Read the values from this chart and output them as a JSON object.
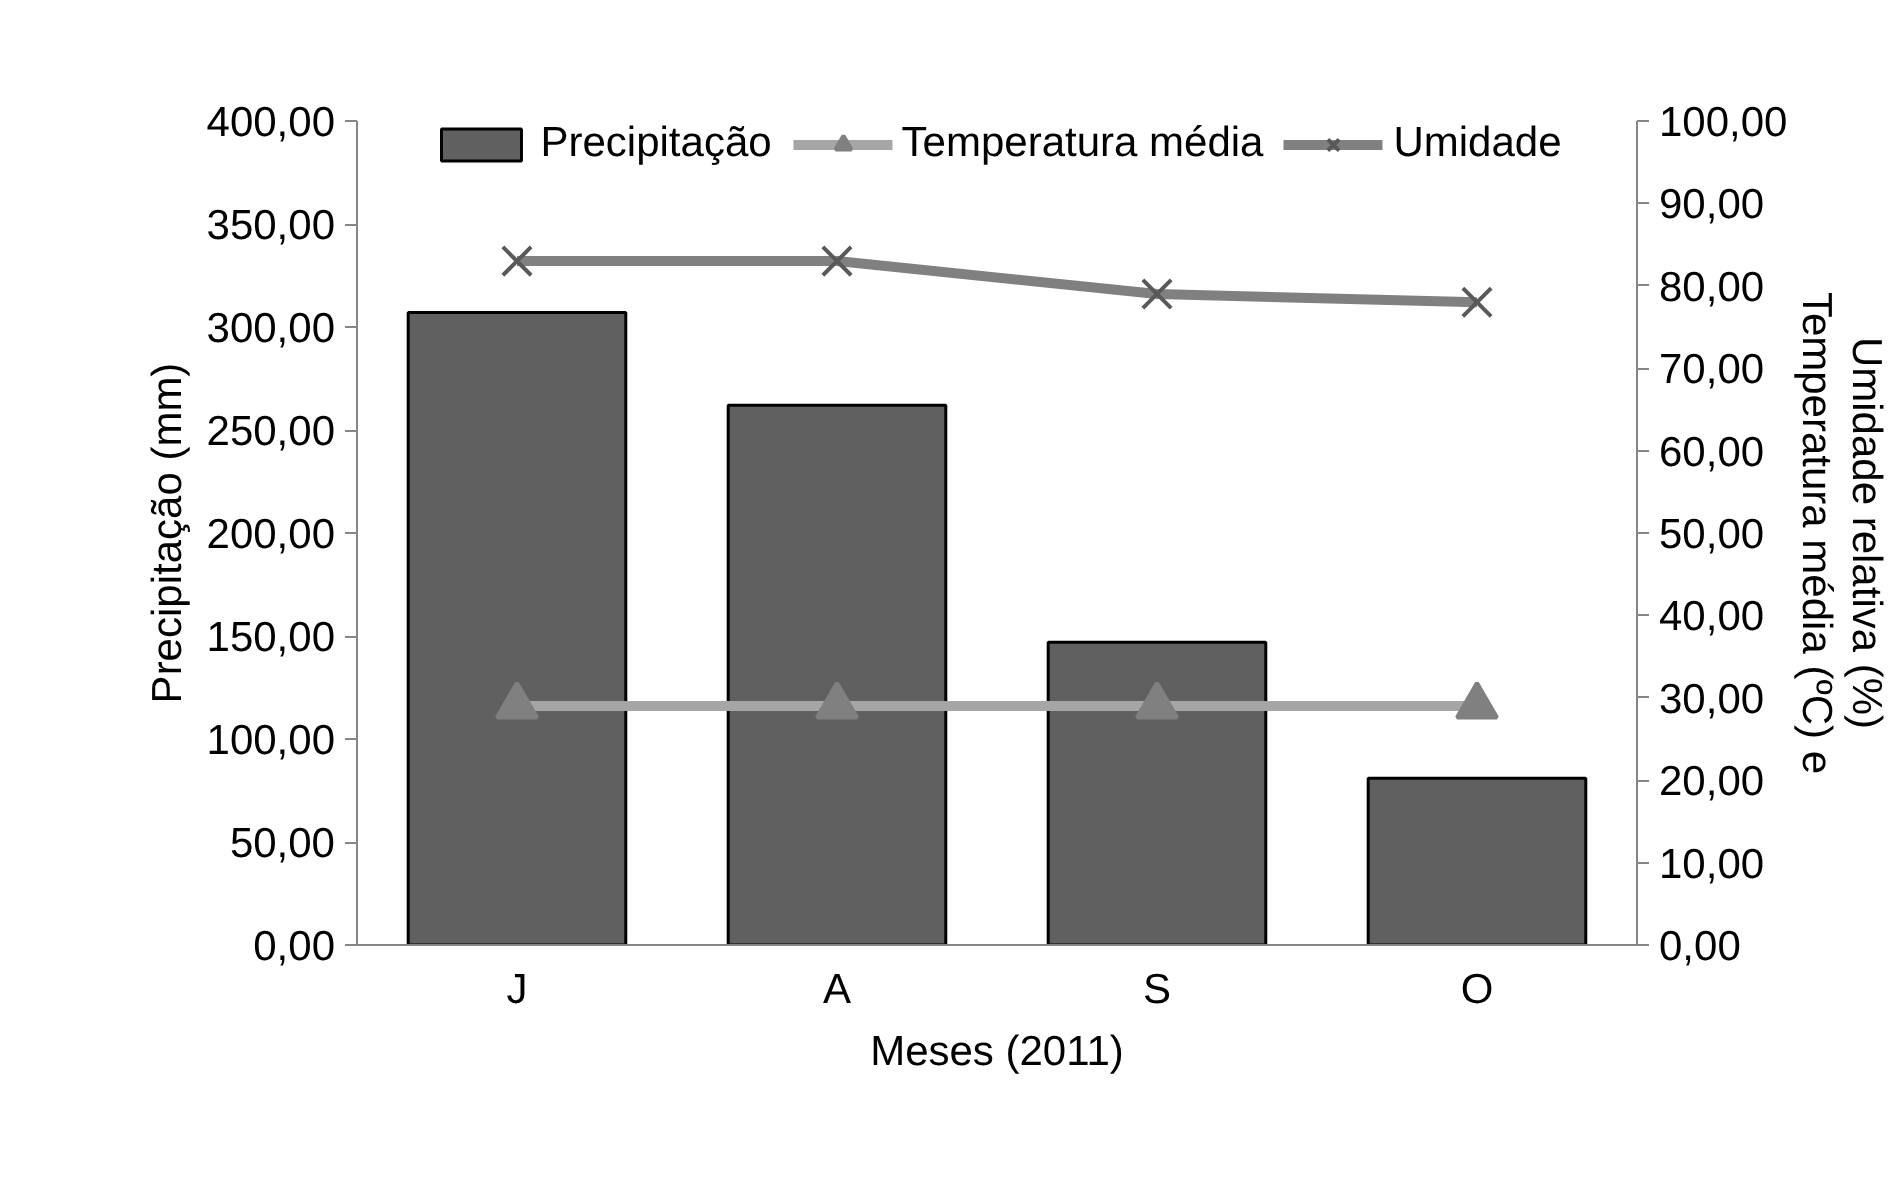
{
  "chart_data": {
    "type": "bar",
    "xlabel": "Meses (2011)",
    "ylabel": "Precipitação (mm)",
    "y2label": "Temperatura média (ºC) e\nUmidade relativa (%)",
    "categories": [
      "J",
      "A",
      "S",
      "O"
    ],
    "series": [
      {
        "name": "Precipitação",
        "color": "#606060",
        "values": [
          307,
          262,
          147,
          81
        ]
      },
      {
        "name": "Temperatura média",
        "type": "line",
        "axis": "y2",
        "color": "#a6a6a6",
        "marker": "triangle",
        "values": [
          29,
          29,
          29,
          29
        ]
      },
      {
        "name": "Umidade",
        "type": "line",
        "axis": "y2",
        "color": "#808080",
        "marker": "cross",
        "values": [
          83,
          83,
          79,
          78
        ]
      }
    ],
    "ylim": [
      0,
      400
    ],
    "yticks": [
      {
        "value": 0,
        "label": "0,00"
      },
      {
        "value": 50,
        "label": "50,00"
      },
      {
        "value": 100,
        "label": "100,00"
      },
      {
        "value": 150,
        "label": "150,00"
      },
      {
        "value": 200,
        "label": "200,00"
      },
      {
        "value": 250,
        "label": "250,00"
      },
      {
        "value": 300,
        "label": "300,00"
      },
      {
        "value": 350,
        "label": "350,00"
      },
      {
        "value": 400,
        "label": "400,00"
      }
    ],
    "y2lim": [
      0,
      100
    ],
    "y2ticks": [
      {
        "value": 0,
        "label": "0,00"
      },
      {
        "value": 10,
        "label": "10,00"
      },
      {
        "value": 20,
        "label": "20,00"
      },
      {
        "value": 30,
        "label": "30,00"
      },
      {
        "value": 40,
        "label": "40,00"
      },
      {
        "value": 50,
        "label": "50,00"
      },
      {
        "value": 60,
        "label": "60,00"
      },
      {
        "value": 70,
        "label": "70,00"
      },
      {
        "value": 80,
        "label": "80,00"
      },
      {
        "value": 90,
        "label": "90,00"
      },
      {
        "value": 100,
        "label": "100,00"
      }
    ],
    "grid": false,
    "legend": "top"
  }
}
